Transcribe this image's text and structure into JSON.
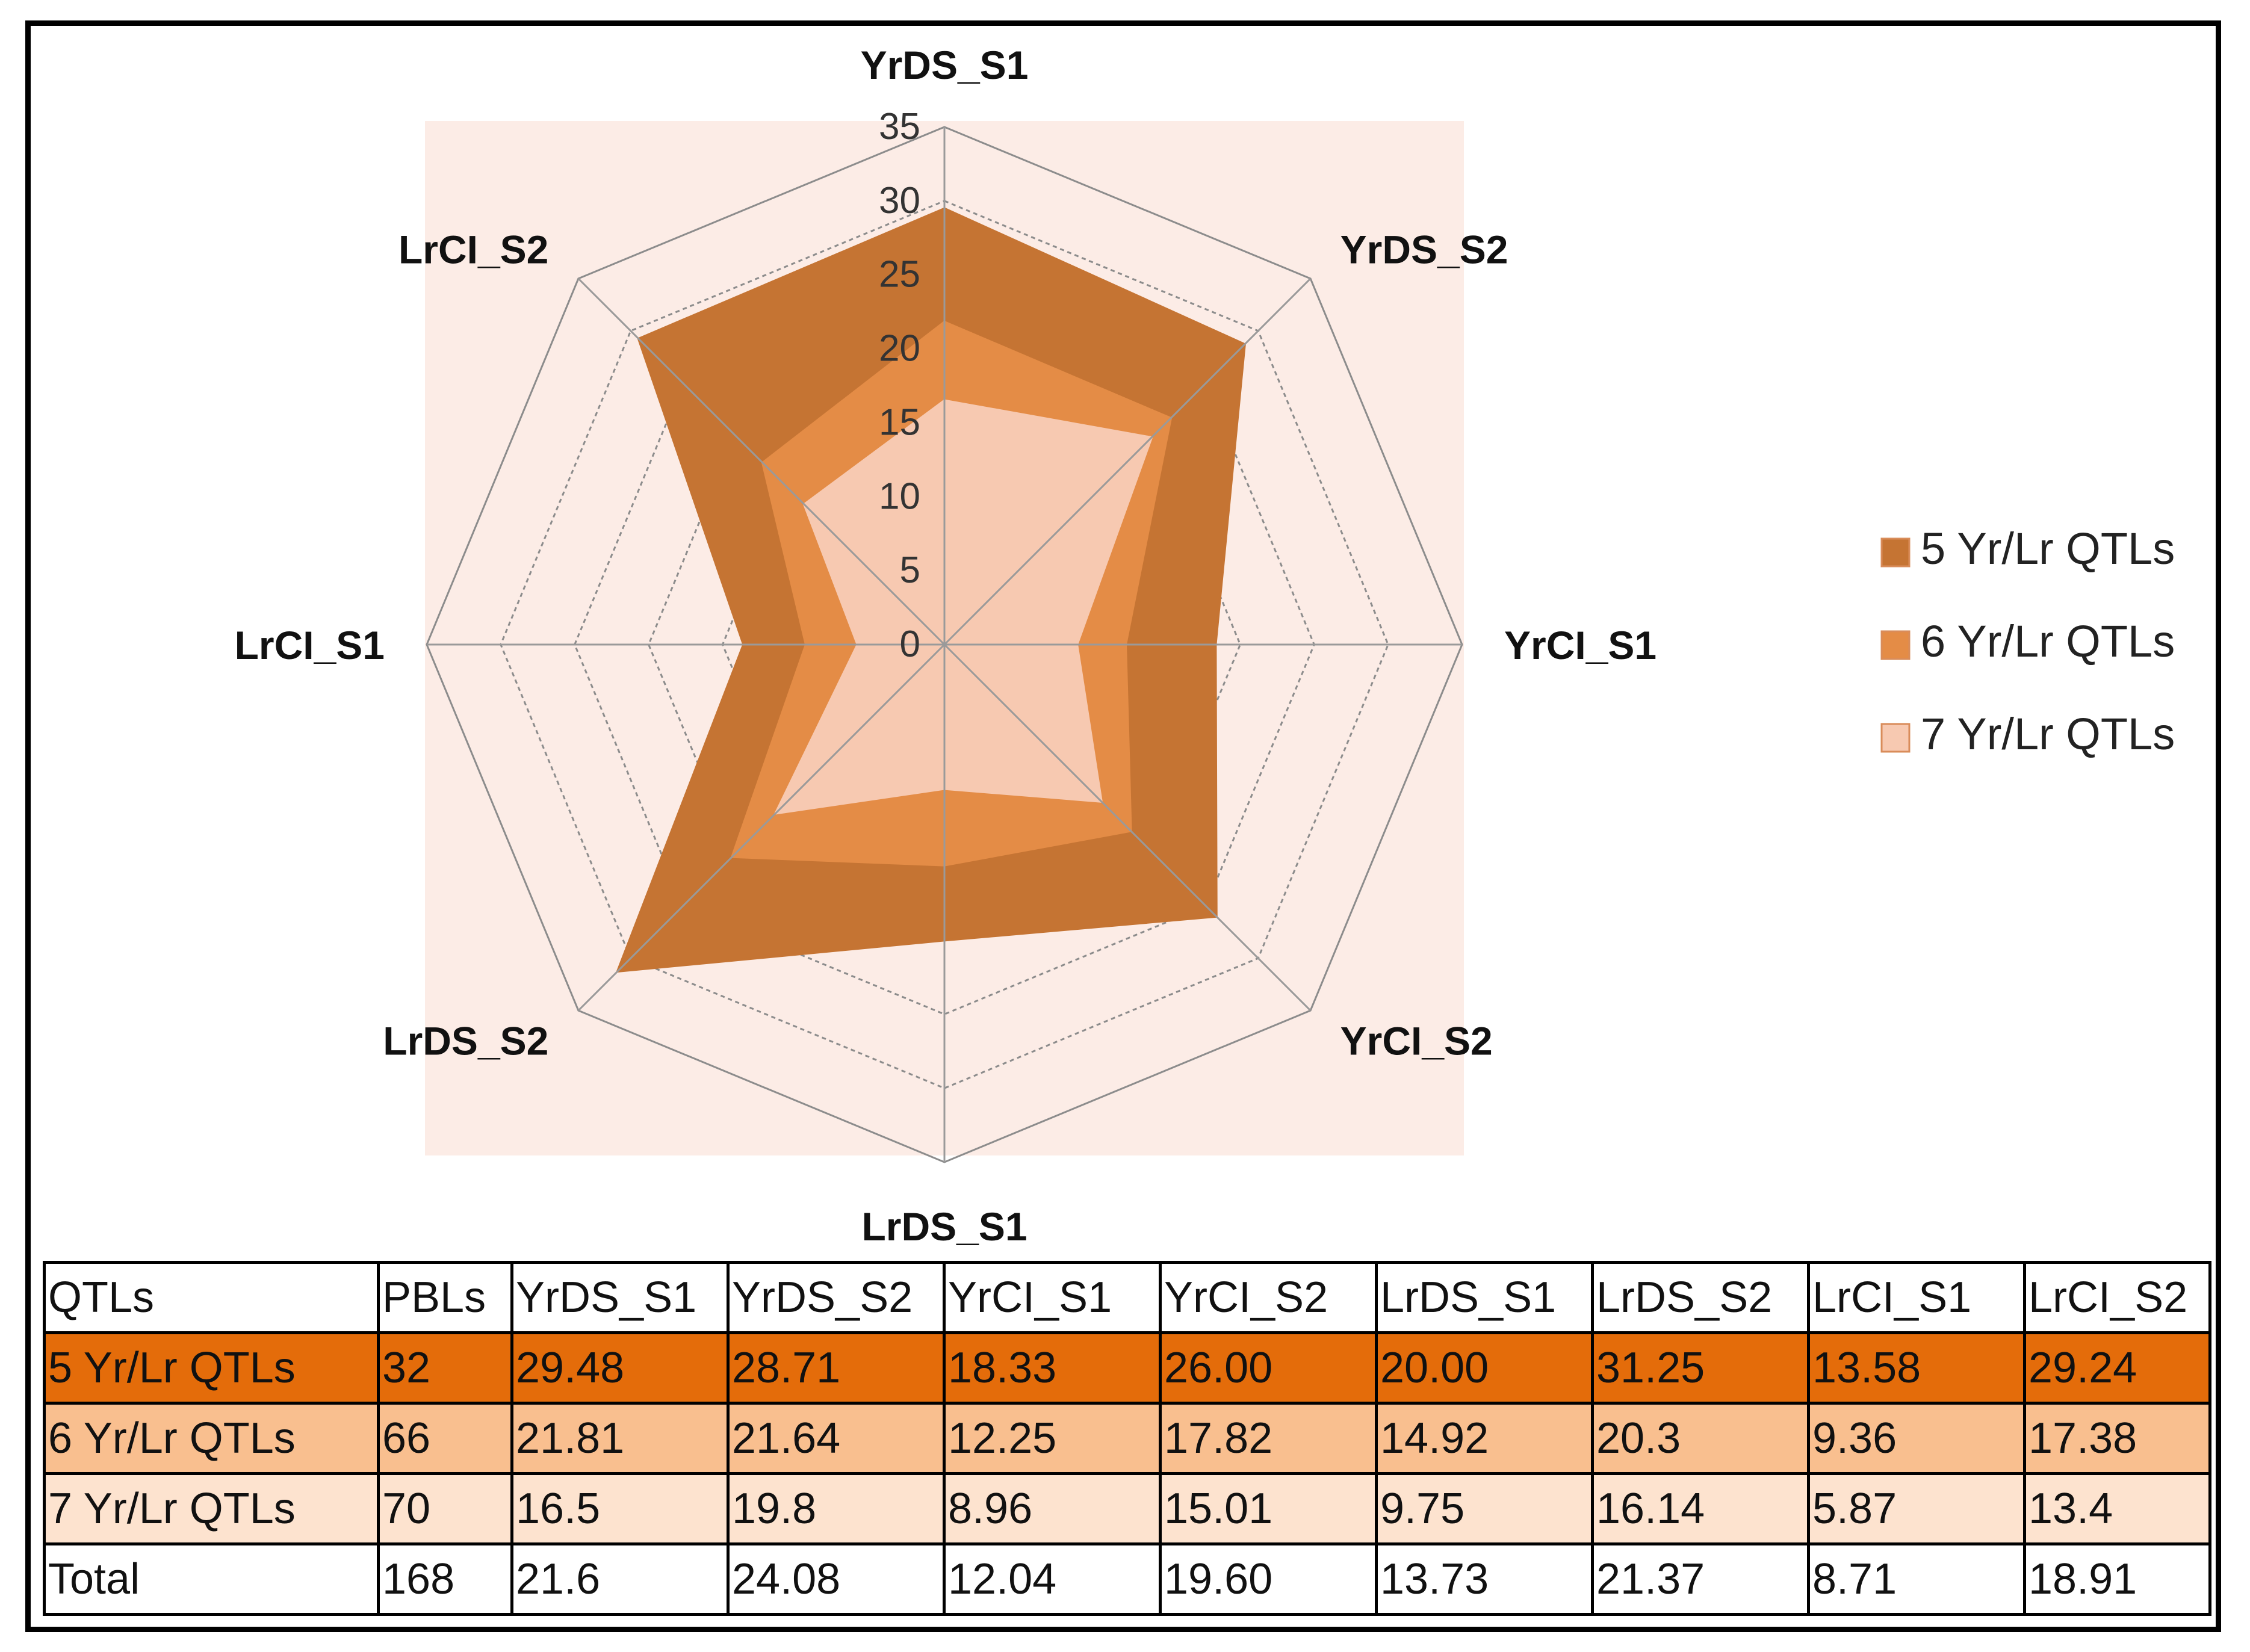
{
  "chart_data": {
    "type": "radar",
    "axes": [
      "YrDS_S1",
      "YrDS_S2",
      "YrCI_S1",
      "YrCI_S2",
      "LrDS_S1",
      "LrDS_S2",
      "LrCI_S1",
      "LrCI_S2"
    ],
    "rlim": [
      0,
      35
    ],
    "ticks": [
      "0",
      "5",
      "10",
      "15",
      "20",
      "25",
      "30",
      "35"
    ],
    "grid": true,
    "legend_position": "right",
    "series": [
      {
        "name": "5 Yr/Lr QTLs",
        "color": "#c57433",
        "values": [
          29.48,
          28.71,
          18.33,
          26.0,
          20.0,
          31.25,
          13.58,
          29.24
        ]
      },
      {
        "name": "6 Yr/Lr QTLs",
        "color": "#e48c46",
        "values": [
          21.81,
          21.64,
          12.25,
          17.82,
          14.92,
          20.3,
          9.36,
          17.38
        ]
      },
      {
        "name": "7 Yr/Lr QTLs",
        "color": "#f7c9b1",
        "values": [
          16.5,
          19.8,
          8.96,
          15.01,
          9.75,
          16.14,
          5.87,
          13.4
        ]
      }
    ],
    "plot_background": "#fcece6"
  },
  "table": {
    "header": [
      "QTLs",
      "PBLs",
      "YrDS_S1",
      "YrDS_S2",
      "YrCI_S1",
      "YrCI_S2",
      "LrDS_S1",
      "LrDS_S2",
      "LrCI_S1",
      "LrCI_S2"
    ],
    "rows": [
      [
        "5 Yr/Lr QTLs",
        "32",
        "29.48",
        "28.71",
        "18.33",
        "26.00",
        "20.00",
        "31.25",
        "13.58",
        "29.24"
      ],
      [
        "6 Yr/Lr QTLs",
        "66",
        "21.81",
        "21.64",
        "12.25",
        "17.82",
        "14.92",
        "20.3",
        "9.36",
        "17.38"
      ],
      [
        "7 Yr/Lr QTLs",
        "70",
        "16.5",
        "19.8",
        "8.96",
        "15.01",
        "9.75",
        "16.14",
        "5.87",
        "13.4"
      ],
      [
        "Total",
        "168",
        "21.6",
        "24.08",
        "12.04",
        "19.60",
        "13.73",
        "21.37",
        "8.71",
        "18.91"
      ]
    ],
    "row_colors": [
      "#e46c0a",
      "#f9bf8f",
      "#fde3cf",
      "#ffffff"
    ]
  }
}
